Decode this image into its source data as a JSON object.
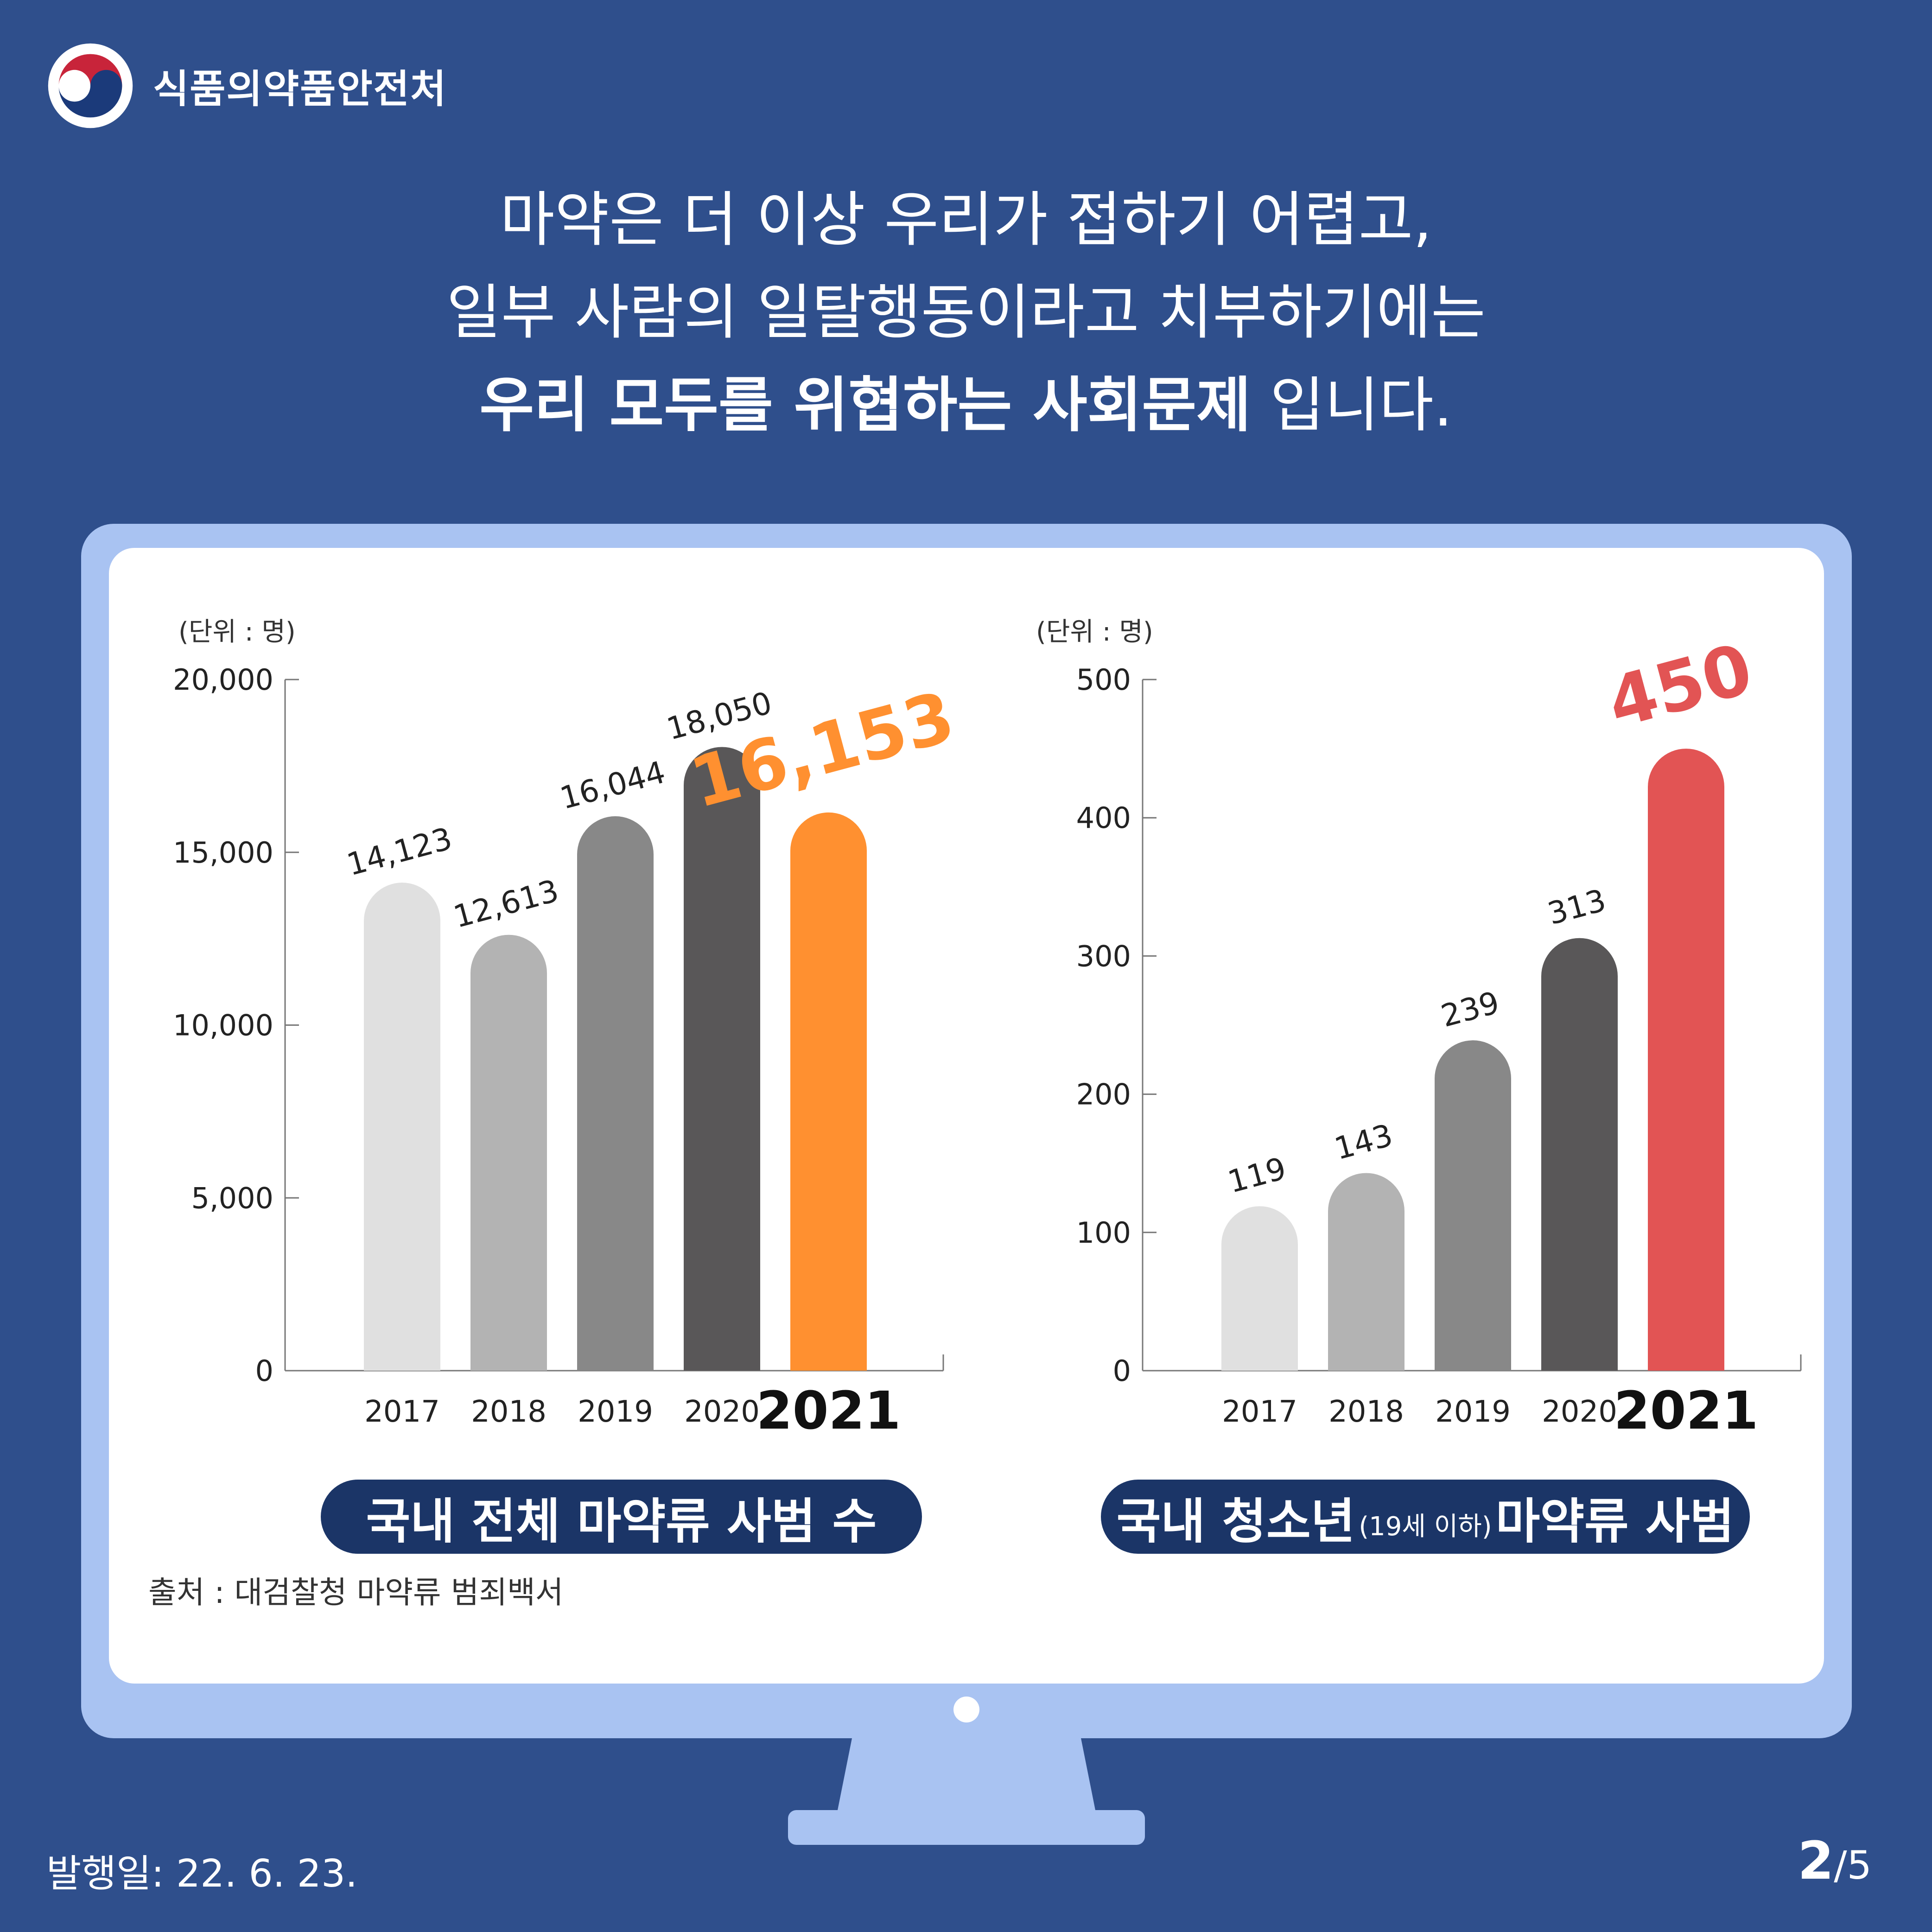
{
  "header": {
    "org_name": "식품의약품안전처",
    "logo_icon": "taegeuk-logo-icon"
  },
  "headline": {
    "line1": "마약은 더 이상 우리가 접하기 어렵고,",
    "line2": "일부 사람의 일탈행동이라고 치부하기에는",
    "line3_bold": "우리 모두를 위협하는 사회문제",
    "line3_rest": " 입니다."
  },
  "charts": {
    "left_caption": "국내 전체 마약류 사범 수",
    "right_caption_a": "국내 청소년",
    "right_caption_small": "(19세 이하)",
    "right_caption_b": "마약류 사범"
  },
  "source": "출처 : 대검찰청 마약류 범죄백서",
  "footer": {
    "date": "발행일: 22. 6. 23.",
    "page_current": "2",
    "page_total": "/5"
  },
  "chart_data": [
    {
      "type": "bar",
      "unit_label": "(단위 : 명)",
      "categories": [
        "2017",
        "2018",
        "2019",
        "2020",
        "2021"
      ],
      "values": [
        14123,
        12613,
        16044,
        18050,
        16153
      ],
      "value_labels": [
        "14,123",
        "12,613",
        "16,044",
        "18,050",
        "16,153"
      ],
      "yticks": [
        "0",
        "5,000",
        "10,000",
        "15,000",
        "20,000"
      ],
      "ylim": [
        0,
        20000
      ],
      "colors": [
        "#e0e0e0",
        "#b3b3b3",
        "#888888",
        "#595758",
        "#ff9030"
      ],
      "highlight_color": "#ff9030"
    },
    {
      "type": "bar",
      "unit_label": "(단위 : 명)",
      "categories": [
        "2017",
        "2018",
        "2019",
        "2020",
        "2021"
      ],
      "values": [
        119,
        143,
        239,
        313,
        450
      ],
      "value_labels": [
        "119",
        "143",
        "239",
        "313",
        "450"
      ],
      "yticks": [
        "0",
        "100",
        "200",
        "300",
        "400",
        "500"
      ],
      "ylim": [
        0,
        500
      ],
      "colors": [
        "#e0e0e0",
        "#b3b3b3",
        "#888888",
        "#595758",
        "#e25454"
      ],
      "highlight_color": "#e25454"
    }
  ]
}
